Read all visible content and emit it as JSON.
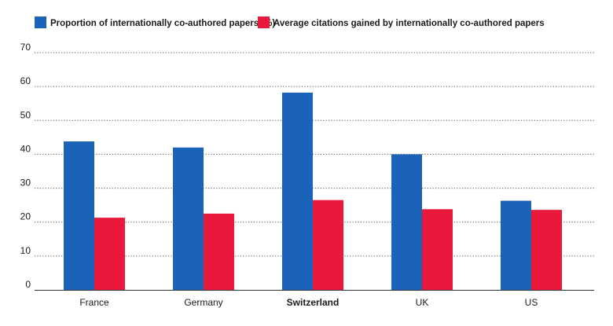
{
  "chart_data": {
    "type": "bar",
    "categories": [
      "France",
      "Germany",
      "Switzerland",
      "UK",
      "US"
    ],
    "highlight_category": "Switzerland",
    "series": [
      {
        "name": "Proportion of internationally co-authored papers (%)",
        "color": "#1a63b8",
        "values": [
          43.8,
          42.0,
          58.2,
          40.0,
          26.3
        ]
      },
      {
        "name": "Average citations gained by internationally co-authored papers",
        "color": "#e8193a",
        "values": [
          21.3,
          22.5,
          26.5,
          23.8,
          23.6
        ]
      }
    ],
    "yticks": [
      0,
      10,
      20,
      30,
      40,
      50,
      60,
      70
    ],
    "ylim": [
      0,
      70
    ],
    "grid": true,
    "legend_position": "top-left",
    "title": "",
    "xlabel": "",
    "ylabel": ""
  }
}
